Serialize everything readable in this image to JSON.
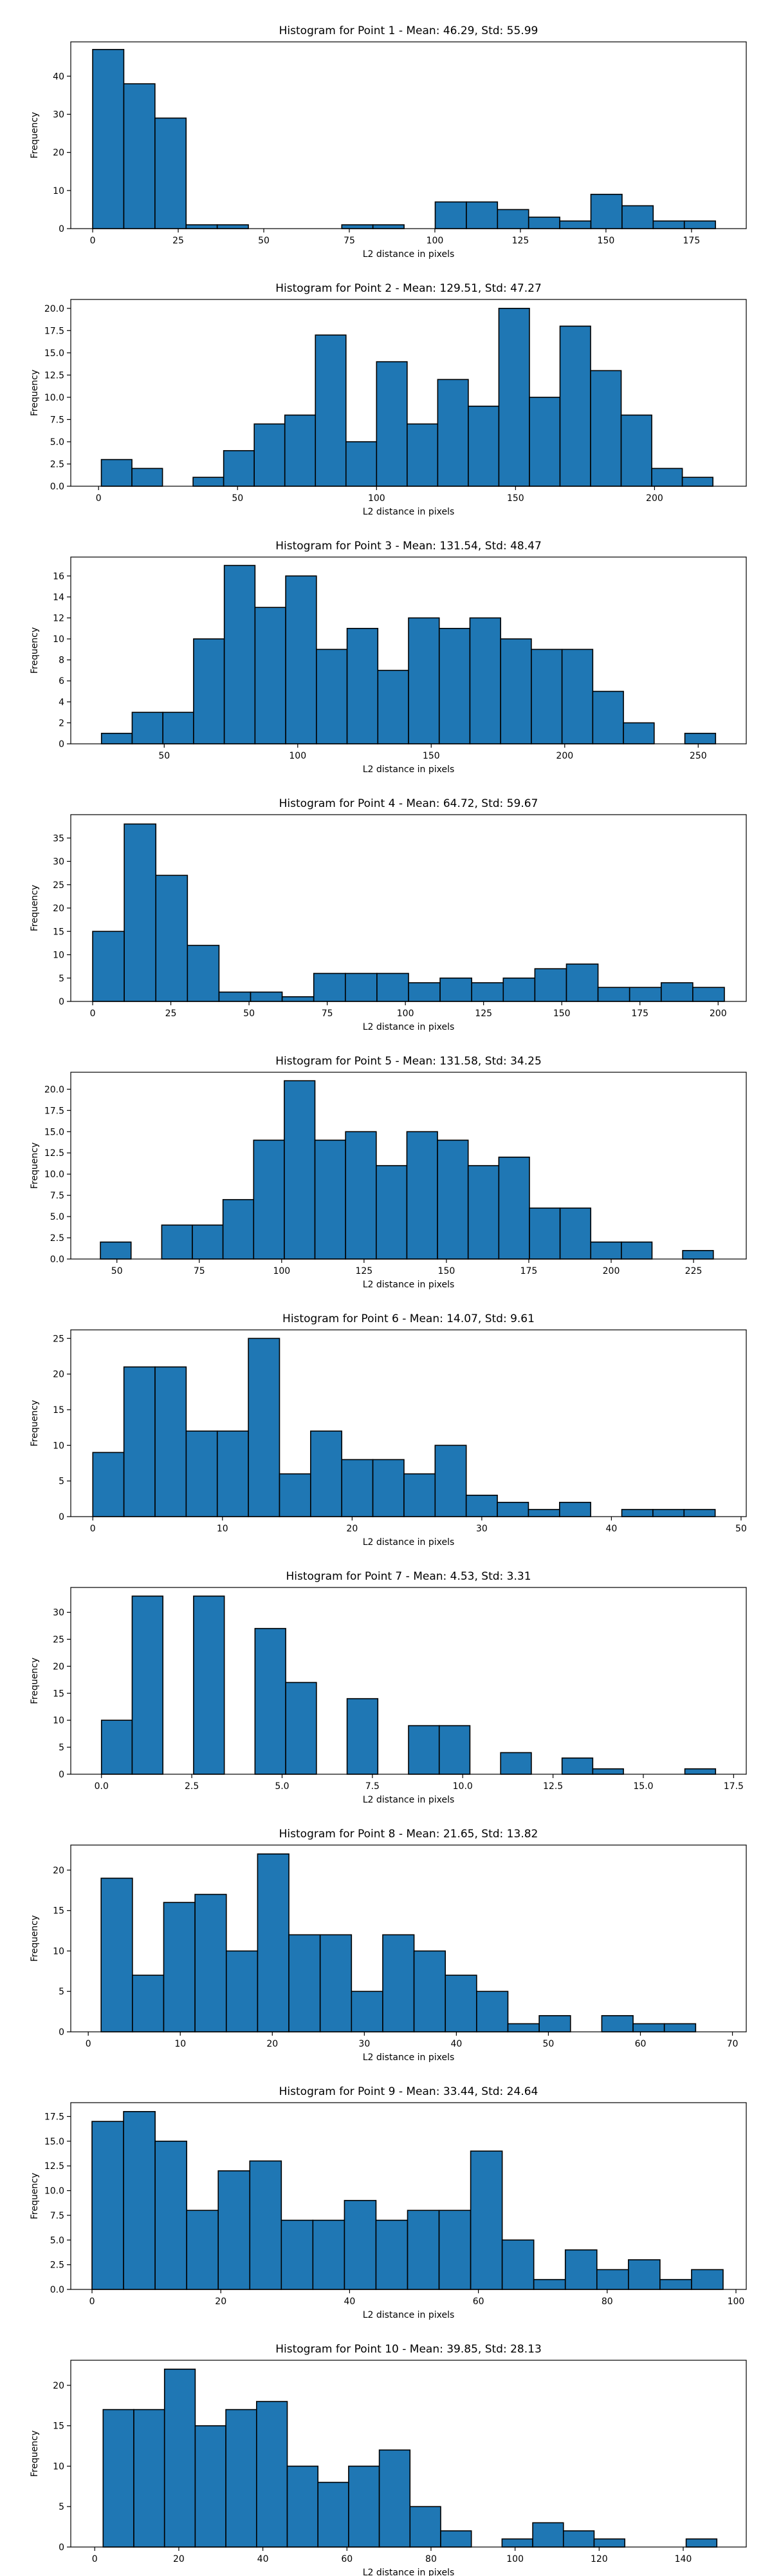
{
  "chart_data": [
    {
      "type": "bar",
      "title": "Histogram for Point 1 - Mean: 46.29, Std: 55.99",
      "xlabel": "L2 distance in pixels",
      "ylabel": "Frequency",
      "bin_start": 0,
      "bin_width": 9.1,
      "values": [
        47,
        38,
        29,
        1,
        1,
        0,
        0,
        0,
        1,
        1,
        0,
        7,
        7,
        5,
        3,
        2,
        9,
        6,
        2,
        2
      ],
      "xlim": [
        -6.4,
        191
      ],
      "ylim": [
        0,
        49
      ],
      "xticks": [
        0,
        25,
        50,
        75,
        100,
        125,
        150,
        175
      ],
      "xtick_labels": [
        "0",
        "25",
        "50",
        "75",
        "100",
        "125",
        "150",
        "175"
      ],
      "yticks": [
        0,
        10,
        20,
        30,
        40
      ],
      "ytick_labels": [
        "0",
        "10",
        "20",
        "30",
        "40"
      ],
      "bar_color": "#1f77b4",
      "edge_color": "#000000"
    },
    {
      "type": "bar",
      "title": "Histogram for Point 2 - Mean: 129.51, Std: 47.27",
      "xlabel": "L2 distance in pixels",
      "ylabel": "Frequency",
      "bin_start": 1,
      "bin_width": 11,
      "values": [
        3,
        2,
        0,
        1,
        4,
        7,
        8,
        17,
        5,
        14,
        7,
        12,
        9,
        20,
        10,
        18,
        13,
        8,
        2,
        1
      ],
      "xlim": [
        -10,
        233
      ],
      "ylim": [
        0,
        21
      ],
      "xticks": [
        0,
        50,
        100,
        150,
        200
      ],
      "xtick_labels": [
        "0",
        "50",
        "100",
        "150",
        "200"
      ],
      "yticks": [
        0,
        2.5,
        5,
        7.5,
        10,
        12.5,
        15,
        17.5,
        20
      ],
      "ytick_labels": [
        "0.0",
        "2.5",
        "5.0",
        "7.5",
        "10.0",
        "12.5",
        "15.0",
        "17.5",
        "20.0"
      ],
      "bar_color": "#1f77b4",
      "edge_color": "#000000"
    },
    {
      "type": "bar",
      "title": "Histogram for Point 3 - Mean: 131.54, Std: 48.47",
      "xlabel": "L2 distance in pixels",
      "ylabel": "Frequency",
      "bin_start": 26.5,
      "bin_width": 11.5,
      "values": [
        1,
        3,
        3,
        10,
        17,
        13,
        16,
        9,
        11,
        7,
        12,
        11,
        12,
        10,
        9,
        9,
        5,
        2,
        0,
        1
      ],
      "xlim": [
        15,
        268
      ],
      "ylim": [
        0,
        17.8
      ],
      "xticks": [
        50,
        100,
        150,
        200,
        250
      ],
      "xtick_labels": [
        "50",
        "100",
        "150",
        "200",
        "250"
      ],
      "yticks": [
        0,
        2,
        4,
        6,
        8,
        10,
        12,
        14,
        16
      ],
      "ytick_labels": [
        "0",
        "2",
        "4",
        "6",
        "8",
        "10",
        "12",
        "14",
        "16"
      ],
      "bar_color": "#1f77b4",
      "edge_color": "#000000"
    },
    {
      "type": "bar",
      "title": "Histogram for Point 4 - Mean: 64.72, Std: 59.67",
      "xlabel": "L2 distance in pixels",
      "ylabel": "Frequency",
      "bin_start": 0,
      "bin_width": 10.1,
      "values": [
        15,
        38,
        27,
        12,
        2,
        2,
        1,
        6,
        6,
        6,
        4,
        5,
        4,
        5,
        7,
        8,
        3,
        3,
        4,
        3
      ],
      "xlim": [
        -7,
        209
      ],
      "ylim": [
        0,
        40
      ],
      "xticks": [
        0,
        25,
        50,
        75,
        100,
        125,
        150,
        175,
        200
      ],
      "xtick_labels": [
        "0",
        "25",
        "50",
        "75",
        "100",
        "125",
        "150",
        "175",
        "200"
      ],
      "yticks": [
        0,
        5,
        10,
        15,
        20,
        25,
        30,
        35
      ],
      "ytick_labels": [
        "0",
        "5",
        "10",
        "15",
        "20",
        "25",
        "30",
        "35"
      ],
      "bar_color": "#1f77b4",
      "edge_color": "#000000"
    },
    {
      "type": "bar",
      "title": "Histogram for Point 5 - Mean: 131.58, Std: 34.25",
      "xlabel": "L2 distance in pixels",
      "ylabel": "Frequency",
      "bin_start": 45,
      "bin_width": 9.3,
      "values": [
        2,
        0,
        4,
        4,
        7,
        14,
        21,
        14,
        15,
        11,
        15,
        14,
        11,
        12,
        6,
        6,
        2,
        2,
        0,
        1
      ],
      "xlim": [
        36,
        241
      ],
      "ylim": [
        0,
        22
      ],
      "xticks": [
        50,
        75,
        100,
        125,
        150,
        175,
        200,
        225
      ],
      "xtick_labels": [
        "50",
        "75",
        "100",
        "125",
        "150",
        "175",
        "200",
        "225"
      ],
      "yticks": [
        0,
        2.5,
        5,
        7.5,
        10,
        12.5,
        15,
        17.5,
        20
      ],
      "ytick_labels": [
        "0.0",
        "2.5",
        "5.0",
        "7.5",
        "10.0",
        "12.5",
        "15.0",
        "17.5",
        "20.0"
      ],
      "bar_color": "#1f77b4",
      "edge_color": "#000000"
    },
    {
      "type": "bar",
      "title": "Histogram for Point 6 - Mean: 14.07, Std: 9.61",
      "xlabel": "L2 distance in pixels",
      "ylabel": "Frequency",
      "bin_start": 0,
      "bin_width": 2.4,
      "values": [
        9,
        21,
        21,
        12,
        12,
        25,
        6,
        12,
        8,
        8,
        6,
        10,
        3,
        2,
        1,
        2,
        0,
        1,
        1,
        1
      ],
      "xlim": [
        -1.7,
        50.4
      ],
      "ylim": [
        0,
        26.2
      ],
      "xticks": [
        0,
        10,
        20,
        30,
        40,
        50
      ],
      "xtick_labels": [
        "0",
        "10",
        "20",
        "30",
        "40",
        "50"
      ],
      "yticks": [
        0,
        5,
        10,
        15,
        20,
        25
      ],
      "ytick_labels": [
        "0",
        "5",
        "10",
        "15",
        "20",
        "25"
      ],
      "bar_color": "#1f77b4",
      "edge_color": "#000000"
    },
    {
      "type": "bar",
      "title": "Histogram for Point 7 - Mean: 4.53, Std: 3.31",
      "xlabel": "L2 distance in pixels",
      "ylabel": "Frequency",
      "bin_start": 0,
      "bin_width": 0.85,
      "values": [
        10,
        33,
        0,
        33,
        0,
        27,
        17,
        0,
        14,
        0,
        9,
        9,
        0,
        4,
        0,
        3,
        1,
        0,
        0,
        1
      ],
      "xlim": [
        -0.85,
        17.85
      ],
      "ylim": [
        0,
        34.6
      ],
      "xticks": [
        0,
        2.5,
        5,
        7.5,
        10,
        12.5,
        15,
        17.5
      ],
      "xtick_labels": [
        "0.0",
        "2.5",
        "5.0",
        "7.5",
        "10.0",
        "12.5",
        "15.0",
        "17.5"
      ],
      "yticks": [
        0,
        5,
        10,
        15,
        20,
        25,
        30
      ],
      "ytick_labels": [
        "0",
        "5",
        "10",
        "15",
        "20",
        "25",
        "30"
      ],
      "bar_color": "#1f77b4",
      "edge_color": "#000000"
    },
    {
      "type": "bar",
      "title": "Histogram for Point 8 - Mean: 21.65, Std: 13.82",
      "xlabel": "L2 distance in pixels",
      "ylabel": "Frequency",
      "bin_start": 1.4,
      "bin_width": 3.4,
      "values": [
        19,
        7,
        16,
        17,
        10,
        22,
        12,
        12,
        5,
        12,
        10,
        7,
        5,
        1,
        2,
        0,
        2,
        1,
        1,
        0
      ],
      "xlim": [
        -1.9,
        71.5
      ],
      "ylim": [
        0,
        23.1
      ],
      "xticks": [
        0,
        10,
        20,
        30,
        40,
        50,
        60,
        70
      ],
      "xtick_labels": [
        "0",
        "10",
        "20",
        "30",
        "40",
        "50",
        "60",
        "70"
      ],
      "yticks": [
        0,
        5,
        10,
        15,
        20
      ],
      "ytick_labels": [
        "0",
        "5",
        "10",
        "15",
        "20"
      ],
      "bar_color": "#1f77b4",
      "edge_color": "#000000"
    },
    {
      "type": "bar",
      "title": "Histogram for Point 9 - Mean: 33.44, Std: 24.64",
      "xlabel": "L2 distance in pixels",
      "ylabel": "Frequency",
      "bin_start": 0,
      "bin_width": 4.9,
      "values": [
        17,
        18,
        15,
        8,
        12,
        13,
        7,
        7,
        9,
        7,
        8,
        8,
        14,
        5,
        1,
        4,
        2,
        3,
        1,
        2
      ],
      "xlim": [
        -3.3,
        101.6
      ],
      "ylim": [
        0,
        18.9
      ],
      "xticks": [
        0,
        20,
        40,
        60,
        80,
        100
      ],
      "xtick_labels": [
        "0",
        "20",
        "40",
        "60",
        "80",
        "100"
      ],
      "yticks": [
        0,
        2.5,
        5,
        7.5,
        10,
        12.5,
        15,
        17.5
      ],
      "ytick_labels": [
        "0.0",
        "2.5",
        "5.0",
        "7.5",
        "10.0",
        "12.5",
        "15.0",
        "17.5"
      ],
      "bar_color": "#1f77b4",
      "edge_color": "#000000"
    },
    {
      "type": "bar",
      "title": "Histogram for Point 10 - Mean: 39.85, Std: 28.13",
      "xlabel": "L2 distance in pixels",
      "ylabel": "Frequency",
      "bin_start": 2,
      "bin_width": 7.3,
      "values": [
        17,
        17,
        22,
        15,
        17,
        18,
        10,
        8,
        10,
        12,
        5,
        2,
        0,
        1,
        3,
        2,
        1,
        0,
        0,
        1
      ],
      "xlim": [
        -5.7,
        155
      ],
      "ylim": [
        0,
        23.1
      ],
      "xticks": [
        0,
        20,
        40,
        60,
        80,
        100,
        120,
        140
      ],
      "xtick_labels": [
        "0",
        "20",
        "40",
        "60",
        "80",
        "100",
        "120",
        "140"
      ],
      "yticks": [
        0,
        5,
        10,
        15,
        20
      ],
      "ytick_labels": [
        "0",
        "5",
        "10",
        "15",
        "20"
      ],
      "bar_color": "#1f77b4",
      "edge_color": "#000000"
    }
  ]
}
